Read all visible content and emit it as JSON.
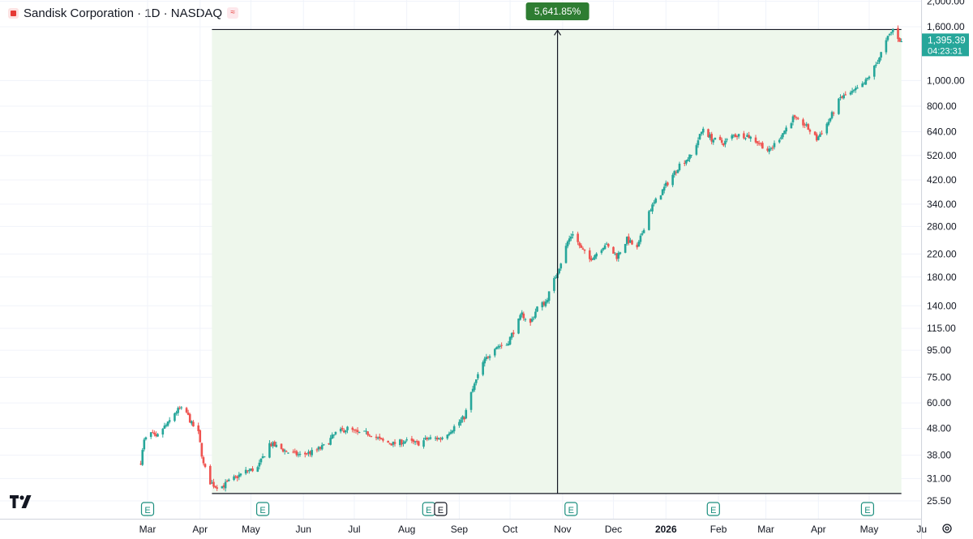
{
  "header": {
    "title": "Sandisk Corporation · 1D · NASDAQ",
    "badge_icon": "wave-icon",
    "logo_icon": "sandisk-logo-icon"
  },
  "measure": {
    "label": "5,641.85%",
    "color": "#2e7d32"
  },
  "last_price": {
    "value": "1,395.39",
    "countdown": "04:23:31",
    "color": "#26a69a"
  },
  "colors": {
    "up": "#26a69a",
    "down": "#ef5350",
    "range_fill": "#eef7ec"
  },
  "earnings_markers": [
    "E",
    "E",
    "E",
    "E",
    "E",
    "E",
    "E"
  ],
  "chart_data": {
    "type": "candlestick",
    "y_scale": "log",
    "grid": true,
    "y_tick_labels": [
      "2,000.00",
      "1,600.00",
      "1,000.00",
      "800.00",
      "640.00",
      "520.00",
      "420.00",
      "340.00",
      "280.00",
      "220.00",
      "180.00",
      "140.00",
      "115.00",
      "95.00",
      "75.00",
      "60.00",
      "48.00",
      "38.00",
      "31.00",
      "25.50"
    ],
    "x_tick_labels": [
      "Mar",
      "Apr",
      "May",
      "Jun",
      "Jul",
      "Aug",
      "Sep",
      "Oct",
      "Nov",
      "Dec",
      "2026",
      "Feb",
      "Mar",
      "Apr",
      "May",
      "Ju"
    ],
    "price_path": [
      [
        "2025-02-25",
        36
      ],
      [
        "2025-02-27",
        43
      ],
      [
        "2025-03-03",
        46
      ],
      [
        "2025-03-06",
        44
      ],
      [
        "2025-03-10",
        48
      ],
      [
        "2025-03-13",
        50
      ],
      [
        "2025-03-17",
        55
      ],
      [
        "2025-03-20",
        57
      ],
      [
        "2025-03-24",
        55
      ],
      [
        "2025-03-27",
        50
      ],
      [
        "2025-03-31",
        46
      ],
      [
        "2025-04-03",
        35
      ],
      [
        "2025-04-07",
        30
      ],
      [
        "2025-04-10",
        29
      ],
      [
        "2025-04-14",
        29
      ],
      [
        "2025-04-21",
        31
      ],
      [
        "2025-04-28",
        33
      ],
      [
        "2025-05-05",
        34
      ],
      [
        "2025-05-12",
        42
      ],
      [
        "2025-05-16",
        41
      ],
      [
        "2025-05-23",
        39
      ],
      [
        "2025-05-30",
        38
      ],
      [
        "2025-06-06",
        39
      ],
      [
        "2025-06-13",
        41
      ],
      [
        "2025-06-20",
        46
      ],
      [
        "2025-06-27",
        48
      ],
      [
        "2025-07-03",
        46
      ],
      [
        "2025-07-10",
        46
      ],
      [
        "2025-07-17",
        43
      ],
      [
        "2025-07-24",
        42
      ],
      [
        "2025-07-31",
        43
      ],
      [
        "2025-08-07",
        42
      ],
      [
        "2025-08-14",
        44
      ],
      [
        "2025-08-21",
        44
      ],
      [
        "2025-08-28",
        48
      ],
      [
        "2025-09-04",
        53
      ],
      [
        "2025-09-08",
        65
      ],
      [
        "2025-09-11",
        73
      ],
      [
        "2025-09-15",
        85
      ],
      [
        "2025-09-22",
        98
      ],
      [
        "2025-09-29",
        100
      ],
      [
        "2025-10-03",
        112
      ],
      [
        "2025-10-08",
        130
      ],
      [
        "2025-10-13",
        120
      ],
      [
        "2025-10-17",
        138
      ],
      [
        "2025-10-22",
        145
      ],
      [
        "2025-10-27",
        175
      ],
      [
        "2025-10-31",
        205
      ],
      [
        "2025-11-04",
        245
      ],
      [
        "2025-11-07",
        265
      ],
      [
        "2025-11-12",
        230
      ],
      [
        "2025-11-17",
        210
      ],
      [
        "2025-11-21",
        222
      ],
      [
        "2025-11-26",
        240
      ],
      [
        "2025-12-03",
        215
      ],
      [
        "2025-12-09",
        250
      ],
      [
        "2025-12-15",
        230
      ],
      [
        "2025-12-22",
        320
      ],
      [
        "2026-01-02",
        410
      ],
      [
        "2026-01-09",
        480
      ],
      [
        "2026-01-16",
        520
      ],
      [
        "2026-01-23",
        660
      ],
      [
        "2026-01-28",
        600
      ],
      [
        "2026-02-04",
        580
      ],
      [
        "2026-02-10",
        620
      ],
      [
        "2026-02-18",
        620
      ],
      [
        "2026-02-25",
        580
      ],
      [
        "2026-03-03",
        540
      ],
      [
        "2026-03-10",
        620
      ],
      [
        "2026-03-17",
        720
      ],
      [
        "2026-03-24",
        680
      ],
      [
        "2026-03-31",
        600
      ],
      [
        "2026-04-07",
        700
      ],
      [
        "2026-04-14",
        860
      ],
      [
        "2026-04-21",
        900
      ],
      [
        "2026-04-28",
        970
      ],
      [
        "2026-05-05",
        1150
      ],
      [
        "2026-05-12",
        1450
      ],
      [
        "2026-05-15",
        1560
      ],
      [
        "2026-05-20",
        1395.39
      ]
    ],
    "measure_range": {
      "from_date": "2025-04-08",
      "to_date": "2026-05-20",
      "low": 27.2,
      "high": 1561.8,
      "change": "5,641.85%"
    },
    "earnings_dates": [
      "2025-03-01",
      "2025-05-08",
      "2025-08-14",
      "2025-08-21",
      "2025-11-06",
      "2026-01-29",
      "2026-04-30"
    ],
    "last_value": 1395.39
  }
}
